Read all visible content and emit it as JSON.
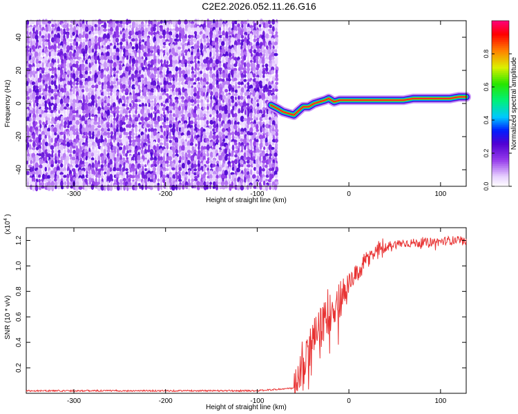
{
  "title": "C2E2.2026.052.11.26.G16",
  "chart_data": [
    {
      "type": "heatmap",
      "name": "spectrogram",
      "xlabel": "Height of straight line (km)",
      "ylabel": "Frequency (Hz)",
      "xlim": [
        -352,
        128
      ],
      "ylim": [
        -50,
        50
      ],
      "xticks": [
        -300,
        -200,
        -100,
        0,
        100
      ],
      "yticks": [
        -40,
        -20,
        0,
        20,
        40
      ],
      "noise_region_x": [
        -352,
        -78
      ],
      "signal_track": {
        "x": [
          -85,
          -78,
          -72,
          -66,
          -60,
          -56,
          -50,
          -44,
          -38,
          -32,
          -26,
          -22,
          -16,
          -10,
          -4,
          0,
          10,
          20,
          30,
          40,
          50,
          60,
          70,
          80,
          90,
          100,
          110,
          120,
          128
        ],
        "freq": [
          -1,
          -3,
          -5,
          -6,
          -7,
          -5,
          -2,
          -2,
          0,
          1,
          2,
          3,
          1,
          2,
          2,
          2,
          2,
          2,
          2,
          2,
          2,
          2,
          3,
          3,
          3,
          3,
          3,
          4,
          4
        ]
      },
      "colorbar": {
        "label": "Normalized spectral amplitude",
        "ticks": [
          "0.0",
          "0.2",
          "0.4",
          "0.6",
          "0.8"
        ],
        "range": [
          0,
          1
        ]
      }
    },
    {
      "type": "line",
      "name": "snr",
      "xlabel": "Height of straight line (km)",
      "ylabel": "SNR (10 * v/v)",
      "multiplier_label": "(x10",
      "multiplier_exp": "4",
      "xlim": [
        -352,
        128
      ],
      "ylim": [
        0,
        1.3
      ],
      "xticks": [
        -300,
        -200,
        -100,
        0,
        100
      ],
      "yticks": [
        "0.2",
        "0.4",
        "0.6",
        "0.8",
        "1.0",
        "1.2"
      ],
      "color": "#e83232",
      "series": [
        {
          "name": "SNR",
          "x": [
            -352,
            -300,
            -250,
            -200,
            -150,
            -100,
            -60,
            -55,
            -50,
            -45,
            -40,
            -35,
            -30,
            -25,
            -20,
            -15,
            -10,
            -5,
            0,
            5,
            10,
            15,
            20,
            25,
            30,
            35,
            40,
            45,
            50,
            60,
            70,
            80,
            90,
            100,
            110,
            120,
            128
          ],
          "values": [
            0.02,
            0.02,
            0.02,
            0.02,
            0.02,
            0.02,
            0.04,
            0.1,
            0.18,
            0.3,
            0.42,
            0.46,
            0.52,
            0.58,
            0.64,
            0.7,
            0.74,
            0.8,
            0.86,
            0.9,
            0.95,
            1.0,
            1.05,
            1.08,
            1.12,
            1.14,
            1.15,
            1.16,
            1.17,
            1.18,
            1.18,
            1.18,
            1.19,
            1.19,
            1.2,
            1.2,
            1.18
          ]
        }
      ]
    }
  ]
}
